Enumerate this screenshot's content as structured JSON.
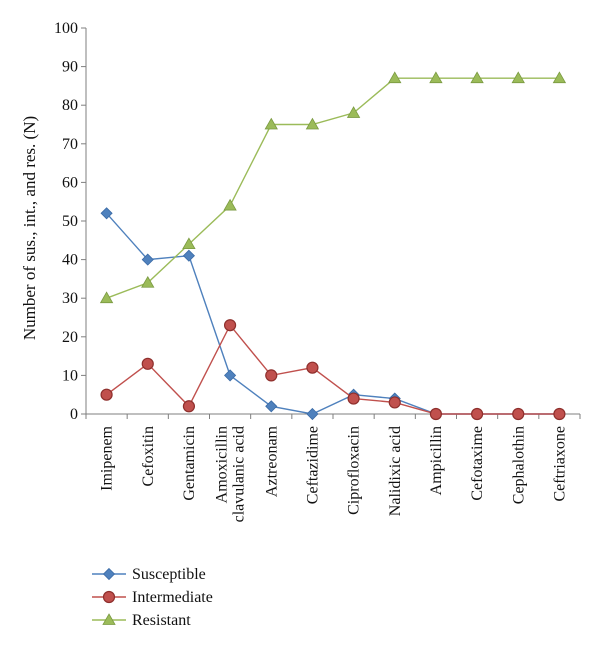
{
  "chart_data": {
    "type": "line",
    "categories": [
      "Imipenem",
      "Cefoxitin",
      "Gentamicin",
      [
        "Amoxicillin",
        "clavulanic acid"
      ],
      "Aztreonam",
      "Ceftazidime",
      "Ciprofloxacin",
      "Nalidixic acid",
      "Ampicillin",
      "Cefotaxime",
      "Cephalothin",
      "Ceftriaxone"
    ],
    "series": [
      {
        "name": "Susceptible",
        "color": "#4F81BD",
        "marker": "diamond",
        "values": [
          52,
          40,
          41,
          10,
          2,
          0,
          5,
          4,
          0,
          0,
          0,
          0
        ]
      },
      {
        "name": "Intermediate",
        "color": "#C0504D",
        "marker": "circle",
        "values": [
          5,
          13,
          2,
          23,
          10,
          12,
          4,
          3,
          0,
          0,
          0,
          0
        ]
      },
      {
        "name": "Resistant",
        "color": "#9BBB59",
        "marker": "triangle",
        "values": [
          30,
          34,
          44,
          54,
          75,
          75,
          78,
          87,
          87,
          87,
          87,
          87
        ]
      }
    ],
    "xlabel": "",
    "ylabel": "Number of sus., int., and res. (N)",
    "ylim": [
      0,
      100
    ],
    "yticks": [
      0,
      10,
      20,
      30,
      40,
      50,
      60,
      70,
      80,
      90,
      100
    ],
    "grid": false,
    "legend": "bottom-left"
  }
}
